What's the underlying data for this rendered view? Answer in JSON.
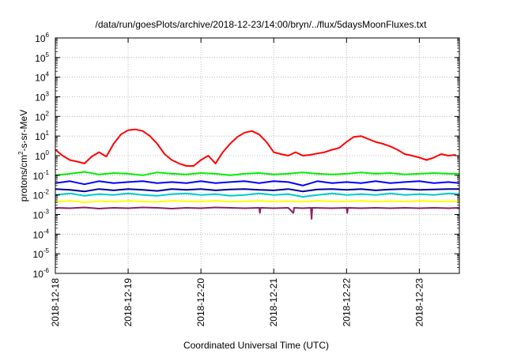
{
  "chart_data": {
    "type": "line",
    "title": "/data/run/goesPlots/archive/2018-12-23/14:00/bryn/../flux/5daysMoonFluxes.txt",
    "xlabel": "Coordinated Universal Time (UTC)",
    "ylabel": "protons/cm2-s-sr-MeV",
    "ylabel_parts": {
      "pre": "protons/cm",
      "sup": "2",
      "post": "-s-sr-MeV"
    },
    "yscale": "log",
    "ylim_exponents": [
      -6,
      6
    ],
    "y_ticks": [
      {
        "base": "10",
        "exp": "6"
      },
      {
        "base": "10",
        "exp": "5"
      },
      {
        "base": "10",
        "exp": "4"
      },
      {
        "base": "10",
        "exp": "3"
      },
      {
        "base": "10",
        "exp": "2"
      },
      {
        "base": "10",
        "exp": "1"
      },
      {
        "base": "10",
        "exp": "0"
      },
      {
        "base": "10",
        "exp": "-1"
      },
      {
        "base": "10",
        "exp": "-2"
      },
      {
        "base": "10",
        "exp": "-3"
      },
      {
        "base": "10",
        "exp": "-4"
      },
      {
        "base": "10",
        "exp": "-5"
      },
      {
        "base": "10",
        "exp": "-6"
      }
    ],
    "x_ticks": [
      "2018-12-18",
      "2018-12-19",
      "2018-12-20",
      "2018-12-21",
      "2018-12-22",
      "2018-12-23"
    ],
    "xlim_days": [
      0,
      5.55
    ],
    "grid": true,
    "series": [
      {
        "color": "#ff0000",
        "x": [
          0.0,
          0.1,
          0.2,
          0.3,
          0.4,
          0.5,
          0.6,
          0.7,
          0.8,
          0.9,
          1.0,
          1.1,
          1.2,
          1.3,
          1.4,
          1.5,
          1.6,
          1.7,
          1.8,
          1.9,
          2.0,
          2.1,
          2.2,
          2.3,
          2.4,
          2.5,
          2.6,
          2.7,
          2.8,
          2.9,
          3.0,
          3.1,
          3.2,
          3.3,
          3.4,
          3.5,
          3.6,
          3.7,
          3.8,
          3.9,
          4.0,
          4.1,
          4.2,
          4.3,
          4.4,
          4.5,
          4.6,
          4.7,
          4.8,
          4.9,
          5.0,
          5.1,
          5.2,
          5.3,
          5.4,
          5.5
        ],
        "values": [
          2,
          1,
          0.6,
          0.5,
          0.4,
          0.9,
          1.5,
          0.9,
          4,
          12,
          20,
          22,
          18,
          10,
          4,
          1.2,
          0.6,
          0.4,
          0.3,
          0.3,
          0.6,
          1,
          0.4,
          1.5,
          4,
          9,
          15,
          18,
          12,
          5,
          1.5,
          1.2,
          1,
          1.5,
          1,
          1.1,
          1.3,
          1.5,
          2,
          2.5,
          5,
          9,
          10,
          7,
          5,
          4,
          3,
          2,
          1.2,
          1,
          0.8,
          0.6,
          0.8,
          1.2,
          1,
          1.1
        ]
      },
      {
        "color": "#00ee00",
        "x": [
          0.0,
          0.2,
          0.4,
          0.6,
          0.8,
          1.0,
          1.2,
          1.4,
          1.6,
          1.8,
          2.0,
          2.2,
          2.4,
          2.6,
          2.8,
          3.0,
          3.2,
          3.4,
          3.6,
          3.8,
          4.0,
          4.2,
          4.4,
          4.6,
          4.8,
          5.0,
          5.2,
          5.4,
          5.55
        ],
        "values": [
          0.1,
          0.12,
          0.15,
          0.11,
          0.13,
          0.12,
          0.1,
          0.14,
          0.12,
          0.11,
          0.13,
          0.12,
          0.1,
          0.12,
          0.13,
          0.11,
          0.12,
          0.14,
          0.12,
          0.11,
          0.12,
          0.14,
          0.12,
          0.13,
          0.11,
          0.12,
          0.13,
          0.12,
          0.12
        ]
      },
      {
        "color": "#0000ff",
        "x": [
          0.0,
          0.2,
          0.4,
          0.6,
          0.8,
          1.0,
          1.2,
          1.4,
          1.6,
          1.8,
          2.0,
          2.2,
          2.4,
          2.6,
          2.8,
          3.0,
          3.2,
          3.4,
          3.6,
          3.8,
          4.0,
          4.2,
          4.4,
          4.6,
          4.8,
          5.0,
          5.2,
          5.4,
          5.55
        ],
        "values": [
          0.04,
          0.05,
          0.035,
          0.05,
          0.04,
          0.045,
          0.05,
          0.04,
          0.045,
          0.04,
          0.05,
          0.04,
          0.045,
          0.05,
          0.04,
          0.05,
          0.045,
          0.03,
          0.05,
          0.04,
          0.045,
          0.04,
          0.05,
          0.04,
          0.045,
          0.05,
          0.04,
          0.045,
          0.04
        ]
      },
      {
        "color": "#000099",
        "x": [
          0.0,
          0.2,
          0.4,
          0.6,
          0.8,
          1.0,
          1.2,
          1.4,
          1.6,
          1.8,
          2.0,
          2.2,
          2.4,
          2.6,
          2.8,
          3.0,
          3.2,
          3.4,
          3.6,
          3.8,
          4.0,
          4.2,
          4.4,
          4.6,
          4.8,
          5.0,
          5.2,
          5.4,
          5.55
        ],
        "values": [
          0.02,
          0.018,
          0.015,
          0.02,
          0.017,
          0.02,
          0.018,
          0.016,
          0.02,
          0.018,
          0.02,
          0.017,
          0.019,
          0.02,
          0.018,
          0.017,
          0.02,
          0.015,
          0.019,
          0.02,
          0.018,
          0.02,
          0.017,
          0.019,
          0.02,
          0.018,
          0.019,
          0.02,
          0.02
        ]
      },
      {
        "color": "#00cccc",
        "x": [
          0.0,
          0.2,
          0.4,
          0.6,
          0.8,
          1.0,
          1.2,
          1.4,
          1.6,
          1.8,
          2.0,
          2.2,
          2.4,
          2.6,
          2.8,
          3.0,
          3.2,
          3.4,
          3.6,
          3.8,
          4.0,
          4.2,
          4.4,
          4.6,
          4.8,
          5.0,
          5.2,
          5.4,
          5.55
        ],
        "values": [
          0.01,
          0.012,
          0.009,
          0.011,
          0.01,
          0.012,
          0.01,
          0.009,
          0.011,
          0.012,
          0.01,
          0.011,
          0.009,
          0.01,
          0.012,
          0.01,
          0.011,
          0.008,
          0.01,
          0.012,
          0.01,
          0.011,
          0.01,
          0.012,
          0.01,
          0.011,
          0.01,
          0.012,
          0.011
        ]
      },
      {
        "color": "#ffff00",
        "x": [
          0.0,
          0.2,
          0.4,
          0.6,
          0.8,
          1.0,
          1.2,
          1.4,
          1.6,
          1.8,
          2.0,
          2.2,
          2.4,
          2.6,
          2.8,
          3.0,
          3.2,
          3.4,
          3.6,
          3.8,
          4.0,
          4.2,
          4.4,
          4.6,
          4.8,
          5.0,
          5.2,
          5.4,
          5.55
        ],
        "values": [
          0.0045,
          0.005,
          0.0042,
          0.0048,
          0.0045,
          0.005,
          0.0046,
          0.0044,
          0.005,
          0.0047,
          0.0046,
          0.005,
          0.0045,
          0.0047,
          0.005,
          0.0046,
          0.0048,
          0.0045,
          0.005,
          0.0047,
          0.0046,
          0.005,
          0.0045,
          0.0048,
          0.0046,
          0.005,
          0.0047,
          0.0046,
          0.0048
        ]
      },
      {
        "color": "#882266",
        "x": [
          0.0,
          0.2,
          0.4,
          0.6,
          0.8,
          1.0,
          1.2,
          1.4,
          1.6,
          1.8,
          2.0,
          2.2,
          2.4,
          2.6,
          2.8,
          2.81,
          2.82,
          3.0,
          3.2,
          3.27,
          3.28,
          3.4,
          3.51,
          3.52,
          3.53,
          3.8,
          4.0,
          4.01,
          4.02,
          4.2,
          4.4,
          4.6,
          4.8,
          5.0,
          5.2,
          5.4,
          5.55
        ],
        "values": [
          0.0022,
          0.0021,
          0.0023,
          0.002,
          0.0022,
          0.0021,
          0.0023,
          0.0022,
          0.002,
          0.0022,
          0.0021,
          0.0023,
          0.0022,
          0.0021,
          0.0022,
          0.0012,
          0.0022,
          0.0021,
          0.0022,
          0.0012,
          0.0022,
          0.0021,
          0.0022,
          0.0006,
          0.0022,
          0.0021,
          0.0022,
          0.0012,
          0.0022,
          0.0021,
          0.0022,
          0.0021,
          0.0022,
          0.0021,
          0.0022,
          0.0021,
          0.0022
        ]
      }
    ]
  }
}
